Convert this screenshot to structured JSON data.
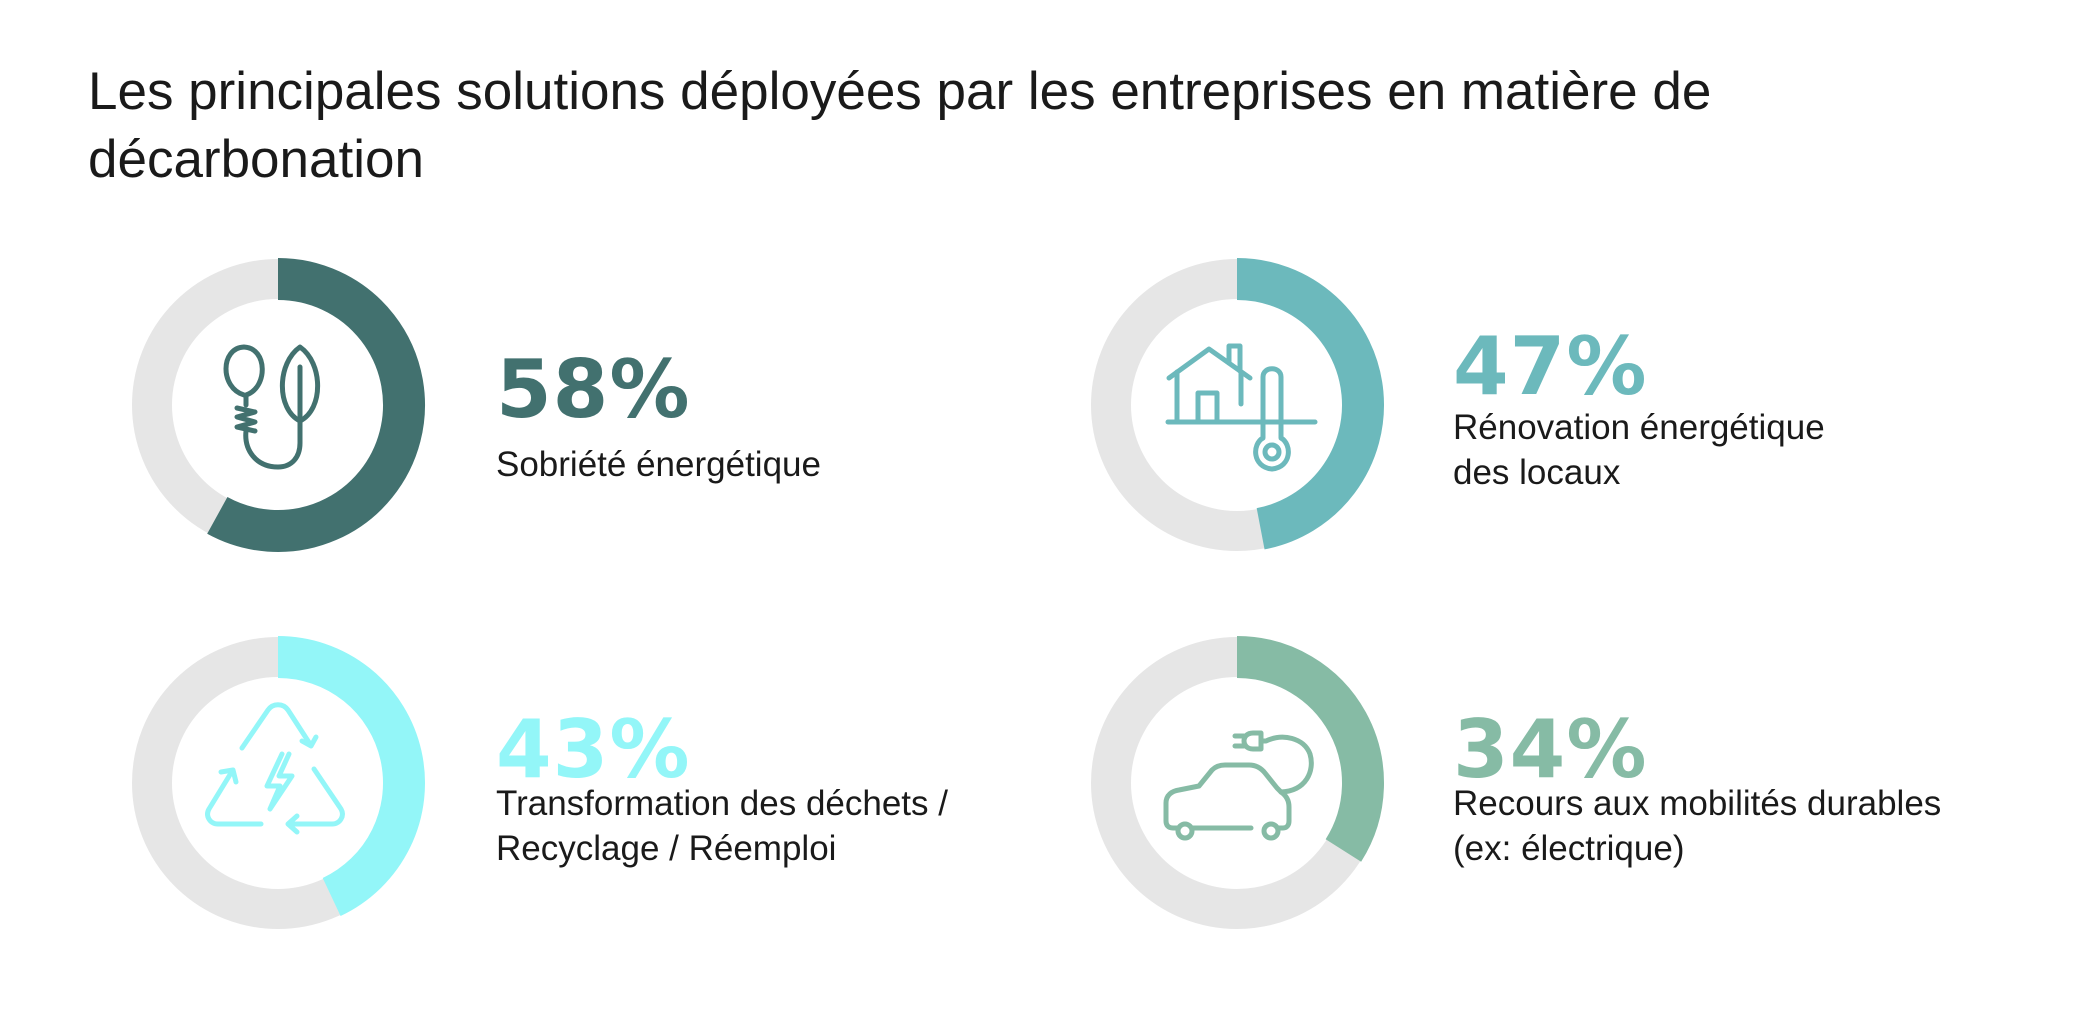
{
  "title": "Les principales solutions déployées par les entreprises en matière de décarbonation",
  "colors": {
    "track": "#e6e6e6",
    "sobriete": "#42716f",
    "renovation": "#6cb9bc",
    "dechets": "#93f6f8",
    "mobilite": "#86bba5"
  },
  "chart_data": {
    "type": "pie",
    "title": "Les principales solutions déployées par les entreprises en matière de décarbonation",
    "categories": [
      "Sobriété énergétique",
      "Rénovation énergétique des locaux",
      "Transformation des déchets / Recyclage / Réemploi",
      "Recours aux mobilités durables (ex: électrique)"
    ],
    "values": [
      58,
      47,
      43,
      34
    ],
    "unit": "%",
    "items": [
      {
        "value": 58,
        "value_label": "58%",
        "label": "Sobriété énergétique",
        "color": "#42716f",
        "icon": "lightbulb-leaf-icon"
      },
      {
        "value": 47,
        "value_label": "47%",
        "label": "Rénovation énergétique\ndes locaux",
        "color": "#6cb9bc",
        "icon": "house-thermometer-icon"
      },
      {
        "value": 43,
        "value_label": "43%",
        "label": "Transformation des déchets /\nRecyclage / Réemploi",
        "color": "#93f6f8",
        "icon": "recycle-energy-icon"
      },
      {
        "value": 34,
        "value_label": "34%",
        "label": "Recours aux mobilités durables\n(ex: électrique)",
        "color": "#86bba5",
        "icon": "electric-car-icon"
      }
    ]
  }
}
